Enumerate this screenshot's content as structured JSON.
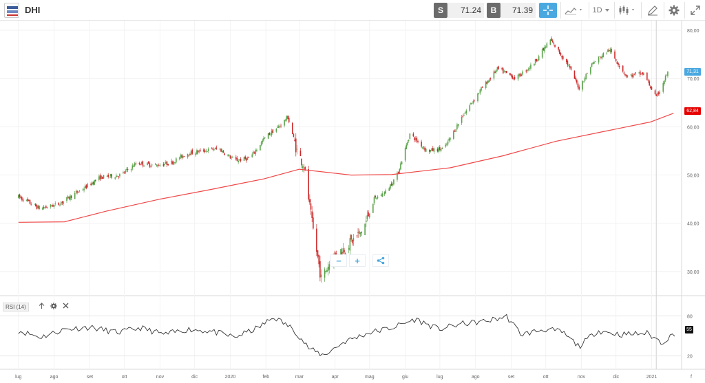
{
  "toolbar": {
    "symbol": "DHI",
    "sell_label": "S",
    "sell_price": "71.24",
    "buy_label": "B",
    "buy_price": "71.39",
    "timeframe": "1D"
  },
  "chart_data": {
    "type": "candlestick",
    "y_ticks": [
      "80,00",
      "70,00",
      "60,00",
      "50,00",
      "40,00",
      "30,00"
    ],
    "ylim": [
      25,
      82
    ],
    "x_ticks": [
      "lug",
      "ago",
      "set",
      "ott",
      "nov",
      "dic",
      "2020",
      "feb",
      "mar",
      "apr",
      "mag",
      "giu",
      "lug",
      "ago",
      "set",
      "ott",
      "nov",
      "dic",
      "2021",
      "f"
    ],
    "last_price_label": "71,31",
    "ma_label": "62,84",
    "close_path": [
      {
        "d": "2019-07-01",
        "v": 45.5
      },
      {
        "d": "2019-07-20",
        "v": 43.0
      },
      {
        "d": "2019-08-05",
        "v": 44.0
      },
      {
        "d": "2019-08-25",
        "v": 47.0
      },
      {
        "d": "2019-09-10",
        "v": 49.5
      },
      {
        "d": "2019-09-28",
        "v": 50.0
      },
      {
        "d": "2019-10-12",
        "v": 52.5
      },
      {
        "d": "2019-10-28",
        "v": 52.0
      },
      {
        "d": "2019-11-10",
        "v": 52.5
      },
      {
        "d": "2019-11-25",
        "v": 54.5
      },
      {
        "d": "2019-12-08",
        "v": 55.0
      },
      {
        "d": "2019-12-22",
        "v": 55.5
      },
      {
        "d": "2020-01-05",
        "v": 53.0
      },
      {
        "d": "2020-01-18",
        "v": 53.5
      },
      {
        "d": "2020-02-01",
        "v": 58.0
      },
      {
        "d": "2020-02-12",
        "v": 60.0
      },
      {
        "d": "2020-02-20",
        "v": 62.0
      },
      {
        "d": "2020-02-28",
        "v": 55.0
      },
      {
        "d": "2020-03-05",
        "v": 52.0
      },
      {
        "d": "2020-03-12",
        "v": 40.0
      },
      {
        "d": "2020-03-20",
        "v": 28.5
      },
      {
        "d": "2020-03-30",
        "v": 33.0
      },
      {
        "d": "2020-04-10",
        "v": 35.0
      },
      {
        "d": "2020-04-25",
        "v": 38.5
      },
      {
        "d": "2020-05-05",
        "v": 45.0
      },
      {
        "d": "2020-05-15",
        "v": 46.5
      },
      {
        "d": "2020-05-25",
        "v": 50.0
      },
      {
        "d": "2020-06-05",
        "v": 58.5
      },
      {
        "d": "2020-06-20",
        "v": 55.0
      },
      {
        "d": "2020-07-05",
        "v": 55.5
      },
      {
        "d": "2020-07-20",
        "v": 62.0
      },
      {
        "d": "2020-08-05",
        "v": 67.5
      },
      {
        "d": "2020-08-20",
        "v": 72.0
      },
      {
        "d": "2020-09-05",
        "v": 70.0
      },
      {
        "d": "2020-09-20",
        "v": 73.0
      },
      {
        "d": "2020-10-05",
        "v": 78.0
      },
      {
        "d": "2020-10-20",
        "v": 73.0
      },
      {
        "d": "2020-10-30",
        "v": 68.0
      },
      {
        "d": "2020-11-10",
        "v": 73.0
      },
      {
        "d": "2020-11-25",
        "v": 76.0
      },
      {
        "d": "2020-12-10",
        "v": 70.5
      },
      {
        "d": "2020-12-25",
        "v": 71.0
      },
      {
        "d": "2021-01-05",
        "v": 66.0
      },
      {
        "d": "2021-01-15",
        "v": 71.3
      }
    ],
    "moving_average": [
      {
        "d": "2019-07-01",
        "v": 40.2
      },
      {
        "d": "2019-08-10",
        "v": 40.3
      },
      {
        "d": "2019-09-15",
        "v": 42.5
      },
      {
        "d": "2019-11-01",
        "v": 45.0
      },
      {
        "d": "2019-12-15",
        "v": 47.0
      },
      {
        "d": "2020-01-30",
        "v": 49.2
      },
      {
        "d": "2020-03-01",
        "v": 51.2
      },
      {
        "d": "2020-04-15",
        "v": 50.0
      },
      {
        "d": "2020-05-20",
        "v": 50.1
      },
      {
        "d": "2020-07-10",
        "v": 51.5
      },
      {
        "d": "2020-08-25",
        "v": 54.0
      },
      {
        "d": "2020-10-10",
        "v": 57.0
      },
      {
        "d": "2020-11-20",
        "v": 59.0
      },
      {
        "d": "2020-12-31",
        "v": 61.0
      },
      {
        "d": "2021-01-20",
        "v": 62.8
      }
    ],
    "rsi": {
      "label": "RSI (14)",
      "levels": [
        "80",
        "20"
      ],
      "value_label": "55",
      "path": [
        {
          "d": "2019-07-01",
          "v": 58
        },
        {
          "d": "2019-07-20",
          "v": 48
        },
        {
          "d": "2019-08-10",
          "v": 60
        },
        {
          "d": "2019-09-01",
          "v": 63
        },
        {
          "d": "2019-09-25",
          "v": 55
        },
        {
          "d": "2019-10-15",
          "v": 62
        },
        {
          "d": "2019-11-05",
          "v": 52
        },
        {
          "d": "2019-11-25",
          "v": 60
        },
        {
          "d": "2019-12-15",
          "v": 57
        },
        {
          "d": "2020-01-05",
          "v": 48
        },
        {
          "d": "2020-01-25",
          "v": 62
        },
        {
          "d": "2020-02-08",
          "v": 78
        },
        {
          "d": "2020-02-25",
          "v": 60
        },
        {
          "d": "2020-03-10",
          "v": 30
        },
        {
          "d": "2020-03-22",
          "v": 21
        },
        {
          "d": "2020-04-10",
          "v": 42
        },
        {
          "d": "2020-05-01",
          "v": 55
        },
        {
          "d": "2020-05-20",
          "v": 62
        },
        {
          "d": "2020-06-10",
          "v": 75
        },
        {
          "d": "2020-06-30",
          "v": 60
        },
        {
          "d": "2020-07-20",
          "v": 68
        },
        {
          "d": "2020-08-10",
          "v": 72
        },
        {
          "d": "2020-08-28",
          "v": 79
        },
        {
          "d": "2020-09-10",
          "v": 52
        },
        {
          "d": "2020-09-30",
          "v": 60
        },
        {
          "d": "2020-10-15",
          "v": 56
        },
        {
          "d": "2020-10-30",
          "v": 34
        },
        {
          "d": "2020-11-15",
          "v": 58
        },
        {
          "d": "2020-12-05",
          "v": 52
        },
        {
          "d": "2020-12-28",
          "v": 54
        },
        {
          "d": "2021-01-10",
          "v": 40
        },
        {
          "d": "2021-01-22",
          "v": 55
        }
      ]
    }
  },
  "chart_controls": {
    "zoom_out": "−",
    "zoom_in": "+"
  }
}
